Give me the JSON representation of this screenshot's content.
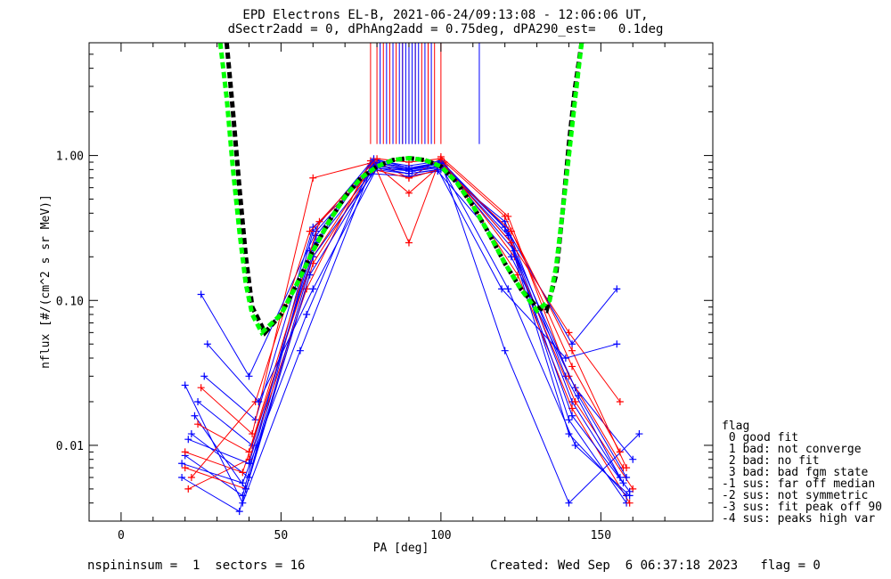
{
  "title": {
    "line1": "EPD Electrons EL-B, 2021-06-24/09:13:08 - 12:06:06 UT,",
    "line2": "dSectr2add = 0, dPhAng2add = 0.75deg, dPA290_est=   0.1deg"
  },
  "footer": {
    "left": "nspininsum =  1  sectors = 16",
    "right": "Created: Wed Sep  6 06:37:18 2023   flag = 0"
  },
  "legend": {
    "items": [
      "flag",
      " 0 good fit",
      " 1 bad: not converge",
      " 2 bad: no fit",
      " 3 bad: bad fgm state",
      "-1 sus: far off median",
      "-2 sus: not symmetric",
      "-3 sus: fit peak off 90",
      "-4 sus: peaks high var"
    ]
  },
  "colors": {
    "series_blue": "#0000ff",
    "series_red": "#ff0000",
    "fit_green": "#00ff00",
    "fit_black": "#000000"
  },
  "chart_data": {
    "type": "line",
    "xlabel": "PA [deg]",
    "ylabel": "nflux [#/(cm^2 s sr MeV)]",
    "xlim": [
      -10,
      185
    ],
    "ylim": [
      0.003,
      6.0
    ],
    "yscale": "log",
    "xticks": [
      0,
      50,
      100,
      150
    ],
    "xtick_labels": [
      "0",
      "50",
      "100",
      "150"
    ],
    "yticks": [
      0.01,
      0.1,
      1.0
    ],
    "ytick_labels": [
      "0.01",
      "0.10",
      "1.00"
    ],
    "grid": false,
    "legend_placement": "outside-right-bottom",
    "vertical_markers": {
      "red_pa": [
        78,
        80,
        82,
        84,
        86,
        88,
        90,
        92,
        94,
        96,
        98,
        100
      ],
      "blue_pa": [
        81,
        83,
        85,
        87,
        88,
        89,
        90,
        91,
        92,
        93,
        95,
        97,
        112
      ],
      "top_flux": 6.0,
      "bottom_flux": 1.2
    },
    "series": [
      {
        "color": "blue",
        "x": [
          20,
          38,
          60,
          79,
          90,
          100,
          121,
          140,
          158
        ],
        "y": [
          0.0085,
          0.0045,
          0.3,
          0.95,
          0.82,
          0.9,
          0.3,
          0.015,
          0.004
        ]
      },
      {
        "color": "blue",
        "x": [
          22,
          40,
          59,
          78,
          90,
          101,
          122,
          141,
          157
        ],
        "y": [
          0.012,
          0.006,
          0.22,
          0.88,
          0.78,
          0.85,
          0.25,
          0.02,
          0.0055
        ]
      },
      {
        "color": "red",
        "x": [
          20,
          39,
          60,
          80,
          90,
          100,
          123,
          142,
          160
        ],
        "y": [
          0.007,
          0.005,
          0.18,
          0.9,
          0.7,
          0.95,
          0.2,
          0.02,
          0.005
        ]
      },
      {
        "color": "blue",
        "x": [
          24,
          41,
          61,
          79,
          90,
          100,
          120,
          139,
          156
        ],
        "y": [
          0.02,
          0.01,
          0.25,
          0.8,
          0.75,
          0.8,
          0.35,
          0.03,
          0.006
        ]
      },
      {
        "color": "red",
        "x": [
          21,
          40,
          58,
          78,
          90,
          101,
          124,
          141,
          159
        ],
        "y": [
          0.005,
          0.008,
          0.12,
          0.92,
          0.55,
          0.9,
          0.15,
          0.018,
          0.004
        ]
      },
      {
        "color": "blue",
        "x": [
          19,
          37,
          59,
          80,
          90,
          100,
          121,
          140,
          158
        ],
        "y": [
          0.006,
          0.0035,
          0.15,
          0.85,
          0.8,
          0.88,
          0.28,
          0.012,
          0.0045
        ]
      },
      {
        "color": "blue",
        "x": [
          26,
          42,
          60,
          78,
          90,
          99,
          122,
          142,
          160
        ],
        "y": [
          0.03,
          0.015,
          0.32,
          0.75,
          0.72,
          0.78,
          0.2,
          0.025,
          0.008
        ]
      },
      {
        "color": "red",
        "x": [
          20,
          38,
          60,
          79,
          90,
          100,
          121,
          140,
          157
        ],
        "y": [
          0.009,
          0.0065,
          0.2,
          0.88,
          0.25,
          0.98,
          0.38,
          0.03,
          0.007
        ]
      },
      {
        "color": "blue",
        "x": [
          21,
          40,
          61,
          79,
          90,
          100,
          120,
          141,
          159
        ],
        "y": [
          0.011,
          0.0075,
          0.28,
          0.93,
          0.85,
          0.92,
          0.32,
          0.016,
          0.0048
        ]
      },
      {
        "color": "blue",
        "x": [
          23,
          39,
          60,
          80,
          91,
          101,
          123,
          143,
          158
        ],
        "y": [
          0.016,
          0.005,
          0.2,
          0.82,
          0.78,
          0.83,
          0.22,
          0.022,
          0.006
        ]
      },
      {
        "color": "red",
        "x": [
          25,
          41,
          60,
          79,
          90,
          100,
          122,
          140,
          156
        ],
        "y": [
          0.025,
          0.012,
          0.7,
          0.9,
          0.8,
          0.9,
          0.25,
          0.06,
          0.02
        ]
      },
      {
        "color": "blue",
        "x": [
          20,
          38,
          56,
          79,
          90,
          100,
          120,
          140,
          162
        ],
        "y": [
          0.026,
          0.004,
          0.045,
          0.9,
          0.8,
          0.9,
          0.045,
          0.004,
          0.012
        ]
      },
      {
        "color": "blue",
        "x": [
          25,
          40,
          61,
          80,
          90,
          100,
          121,
          141,
          155
        ],
        "y": [
          0.11,
          0.03,
          0.3,
          0.9,
          0.82,
          0.88,
          0.3,
          0.05,
          0.12
        ]
      },
      {
        "color": "red",
        "x": [
          22,
          42,
          59,
          79,
          90,
          101,
          122,
          141,
          158
        ],
        "y": [
          0.006,
          0.02,
          0.3,
          0.8,
          0.7,
          0.82,
          0.3,
          0.045,
          0.007
        ]
      },
      {
        "color": "blue",
        "x": [
          19,
          38,
          58,
          78,
          90,
          100,
          121,
          142,
          159
        ],
        "y": [
          0.0075,
          0.0055,
          0.08,
          0.85,
          0.8,
          0.85,
          0.12,
          0.01,
          0.0045
        ]
      },
      {
        "color": "red",
        "x": [
          24,
          40,
          62,
          80,
          90,
          100,
          120,
          141,
          156
        ],
        "y": [
          0.014,
          0.009,
          0.35,
          0.95,
          0.9,
          0.95,
          0.38,
          0.035,
          0.009
        ]
      },
      {
        "color": "blue",
        "x": [
          27,
          43,
          60,
          80,
          90,
          99,
          119,
          139,
          155
        ],
        "y": [
          0.05,
          0.02,
          0.12,
          0.82,
          0.75,
          0.8,
          0.12,
          0.04,
          0.05
        ]
      }
    ],
    "fits": [
      {
        "name": "",
        "color": "black",
        "style": "dashed",
        "x": [
          33,
          35,
          37,
          39,
          41,
          45,
          50,
          55,
          60,
          65,
          70,
          75,
          80,
          85,
          90,
          95,
          100,
          105,
          110,
          115,
          120,
          125,
          130,
          133,
          136,
          138,
          140,
          142,
          144
        ],
        "y": [
          6.0,
          2.0,
          0.6,
          0.2,
          0.09,
          0.06,
          0.08,
          0.13,
          0.22,
          0.35,
          0.52,
          0.7,
          0.84,
          0.93,
          0.96,
          0.93,
          0.84,
          0.65,
          0.45,
          0.29,
          0.18,
          0.12,
          0.09,
          0.085,
          0.15,
          0.4,
          1.2,
          3.0,
          6.0
        ]
      },
      {
        "name": "",
        "color": "green",
        "style": "dashed",
        "x": [
          31,
          33,
          35,
          37,
          39,
          41,
          44,
          50,
          55,
          60,
          65,
          70,
          75,
          80,
          85,
          90,
          95,
          100,
          105,
          110,
          115,
          120,
          125,
          130,
          134,
          136,
          138,
          140,
          142,
          144
        ],
        "y": [
          6.0,
          2.5,
          0.8,
          0.3,
          0.13,
          0.08,
          0.06,
          0.08,
          0.13,
          0.22,
          0.35,
          0.52,
          0.7,
          0.84,
          0.93,
          0.96,
          0.93,
          0.84,
          0.65,
          0.45,
          0.29,
          0.18,
          0.12,
          0.085,
          0.1,
          0.17,
          0.4,
          1.0,
          2.5,
          6.0
        ]
      }
    ]
  }
}
